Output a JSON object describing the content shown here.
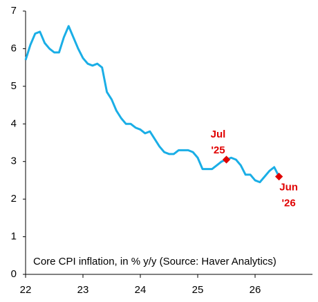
{
  "chart_data": {
    "type": "line",
    "note": "Core CPI inflation, in % y/y (Source: Haver Analytics)",
    "x": [
      22,
      22.0833,
      22.1667,
      22.25,
      22.3333,
      22.4167,
      22.5,
      22.5833,
      22.6667,
      22.75,
      22.8333,
      22.9167,
      23,
      23.0833,
      23.1667,
      23.25,
      23.3333,
      23.4167,
      23.5,
      23.5833,
      23.6667,
      23.75,
      23.8333,
      23.9167,
      24,
      24.0833,
      24.1667,
      24.25,
      24.3333,
      24.4167,
      24.5,
      24.5833,
      24.6667,
      24.75,
      24.8333,
      24.9167,
      25,
      25.0833,
      25.1667,
      25.25,
      25.3333,
      25.4167,
      25.5,
      25.5833,
      25.6667,
      25.75,
      25.8333,
      25.9167,
      26,
      26.0833,
      26.1667,
      26.25,
      26.3333,
      26.4167
    ],
    "series": [
      {
        "color": "#1aaee6",
        "values": [
          5.7,
          6.1,
          6.4,
          6.45,
          6.15,
          6.0,
          5.9,
          5.9,
          6.3,
          6.6,
          6.3,
          6.0,
          5.75,
          5.6,
          5.55,
          5.6,
          5.5,
          4.85,
          4.65,
          4.35,
          4.15,
          4.0,
          4.0,
          3.9,
          3.85,
          3.75,
          3.8,
          3.6,
          3.4,
          3.25,
          3.2,
          3.2,
          3.3,
          3.3,
          3.3,
          3.25,
          3.1,
          2.8,
          2.8,
          2.8,
          2.9,
          3.0,
          3.05,
          3.1,
          3.05,
          2.9,
          2.65,
          2.65,
          2.5,
          2.45,
          2.6,
          2.75,
          2.85,
          2.6
        ]
      }
    ],
    "annotations": [
      {
        "x": 25.5,
        "y": 3.05,
        "label": [
          "Jul",
          "'25"
        ],
        "color": "#e00000"
      },
      {
        "x": 26.4167,
        "y": 2.6,
        "label": [
          "Jun",
          "'26"
        ],
        "color": "#e00000"
      }
    ],
    "xlim": [
      22,
      27
    ],
    "xticks": [
      22,
      23,
      24,
      25,
      26
    ],
    "ylim": [
      0,
      7
    ],
    "yticks": [
      0,
      1,
      2,
      3,
      4,
      5,
      6,
      7
    ]
  }
}
